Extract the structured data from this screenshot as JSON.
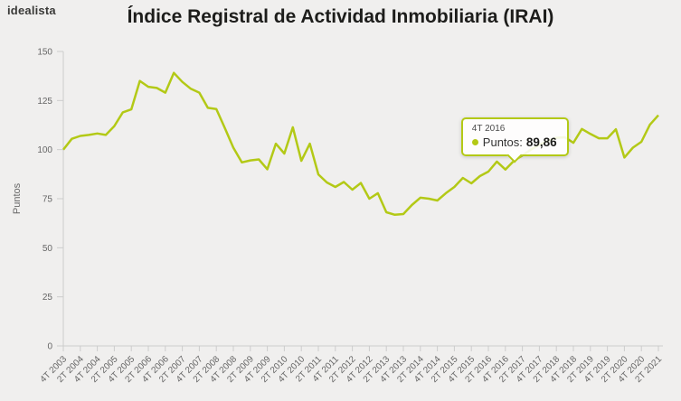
{
  "brand": {
    "logo_text": "idealista"
  },
  "header": {
    "title": "Índice Registral de Actividad Inmobiliaria (IRAI)"
  },
  "colors": {
    "page_bg": "#f0efee",
    "accent": "#b3c916",
    "title_text": "#1d1d1b",
    "axis_line": "#cccccc",
    "tick_text": "#666666"
  },
  "chart_data": {
    "type": "line",
    "title": "Índice Registral de Actividad Inmobiliaria (IRAI)",
    "xlabel": "",
    "ylabel": "Puntos",
    "ylim": [
      0,
      150
    ],
    "yticks": [
      0,
      25,
      50,
      75,
      100,
      125,
      150
    ],
    "grid": false,
    "legend": "none",
    "x_labels": [
      "4T 2003",
      "2T 2004",
      "4T 2004",
      "2T 2005",
      "4T 2005",
      "2T 2006",
      "4T 2006",
      "2T 2007",
      "4T 2007",
      "2T 2008",
      "4T 2008",
      "2T 2009",
      "4T 2009",
      "2T 2010",
      "4T 2010",
      "2T 2011",
      "4T 2011",
      "2T 2012",
      "4T 2012",
      "2T 2013",
      "4T 2013",
      "2T 2014",
      "4T 2014",
      "2T 2015",
      "4T 2015",
      "2T 2016",
      "4T 2016",
      "2T 2017",
      "4T 2017",
      "2T 2018",
      "4T 2018",
      "2T 2019",
      "4T 2019",
      "2T 2020",
      "4T 2020",
      "2T 2021"
    ],
    "x_labels_every_n_points": 2,
    "series": [
      {
        "name": "Puntos",
        "color": "#b3c916",
        "start_period": "4T 2003",
        "end_period": "2T 2021",
        "values": [
          100,
          105.5,
          107,
          107.5,
          108.2,
          107.5,
          112,
          119,
          120.5,
          135,
          132,
          131.4,
          129,
          139.1,
          134.5,
          131,
          129,
          121.3,
          120.7,
          111,
          101,
          93.5,
          94.5,
          95,
          90,
          103,
          98,
          111.4,
          94.3,
          103,
          87.4,
          83.3,
          81,
          83.5,
          79.6,
          83,
          75,
          77.8,
          68.1,
          66.8,
          67.2,
          71.8,
          75.5,
          75,
          74.1,
          77.8,
          81,
          85.6,
          82.8,
          86.5,
          88.8,
          93.9,
          89.86,
          94.3,
          97,
          100,
          102.5,
          104.5,
          106,
          106.3,
          103.5,
          110.5,
          108,
          105.8,
          105.8,
          110.4,
          96,
          101,
          104,
          112.7,
          117.5
        ]
      }
    ],
    "tooltip": {
      "period": "4T 2016",
      "label": "Puntos:",
      "value": "89,86",
      "point_index": 52,
      "point_value": 89.86
    }
  }
}
